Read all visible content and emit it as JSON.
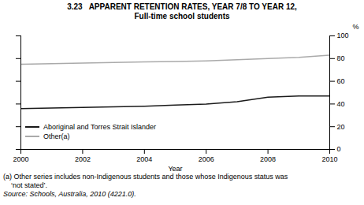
{
  "chart_data": {
    "type": "line",
    "title": "3.23   APPARENT RETENTION RATES, YEAR 7/8 TO YEAR 12,",
    "subtitle": "Full-time school students",
    "xlabel": "Year",
    "ylabel": "%",
    "x": [
      2000,
      2001,
      2002,
      2003,
      2004,
      2005,
      2006,
      2007,
      2008,
      2009,
      2010
    ],
    "series": [
      {
        "name": "Aboriginal and Torres Strait Islander",
        "color": "#1a1a1a",
        "values": [
          36,
          36.5,
          37,
          37.5,
          38,
          39,
          40,
          42,
          46,
          47,
          47
        ]
      },
      {
        "name": "Other(a)",
        "color": "#aaaaaa",
        "values": [
          75,
          75.5,
          76,
          76.5,
          77,
          77.5,
          78,
          79,
          80,
          81,
          83
        ]
      }
    ],
    "xlim": [
      2000,
      2010
    ],
    "xticks": [
      2000,
      2002,
      2004,
      2006,
      2008,
      2010
    ],
    "ylim": [
      0,
      100
    ],
    "yticks": [
      0,
      20,
      40,
      60,
      80,
      100
    ],
    "legend": "lower left",
    "annotations": [
      "(a) Other series includes non-Indigenous students and those whose Indigenous status was",
      "    ‘not stated’."
    ],
    "source": "Source: Schools, Australia, 2010 (4221.0)."
  }
}
